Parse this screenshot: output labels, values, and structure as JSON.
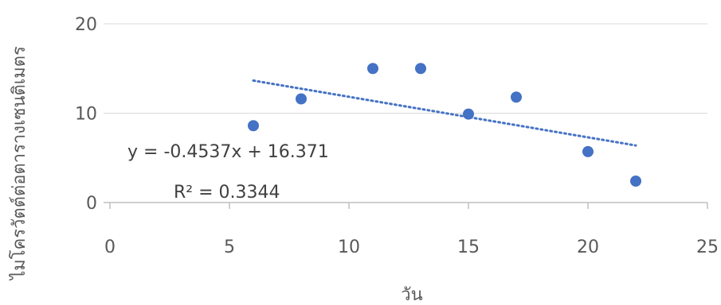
{
  "chart_data": {
    "type": "scatter",
    "xlabel": "วัน",
    "ylabel": "ไมโครวัตต์ต่อตารางเซนติเมตร",
    "xlim": [
      0,
      25
    ],
    "ylim": [
      0,
      20
    ],
    "xticks": [
      0,
      5,
      10,
      15,
      20,
      25
    ],
    "yticks": [
      0,
      10,
      20
    ],
    "grid": "horizontal",
    "series": [
      {
        "x": [
          6,
          8,
          11,
          13,
          15,
          17,
          20,
          22
        ],
        "y": [
          8.6,
          11.6,
          15.0,
          15.0,
          9.9,
          11.8,
          5.7,
          2.4
        ],
        "color": "#4472C4"
      }
    ],
    "trendline": {
      "type": "linear",
      "slope": -0.4537,
      "intercept": 16.371,
      "x_range": [
        6,
        22
      ],
      "style": "dotted",
      "color": "#4472C4",
      "equation_text": "y = -0.4537x + 16.371",
      "r2_text": "R² = 0.3344"
    },
    "colors": {
      "gridline": "#D9D9D9",
      "axis": "#BFBFBF",
      "text": "#595959"
    }
  }
}
